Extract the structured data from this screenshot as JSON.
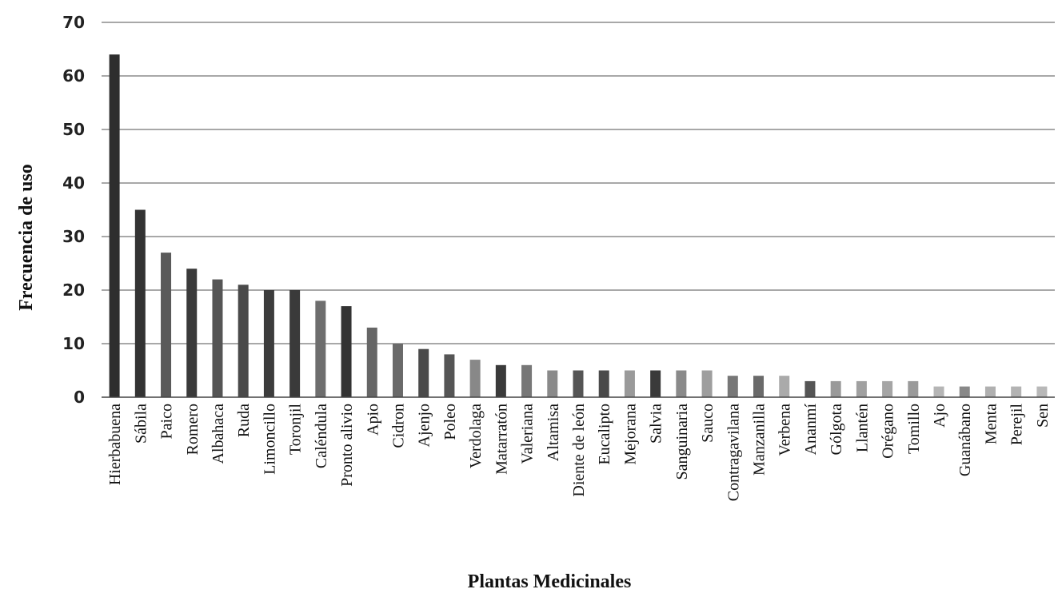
{
  "chart_data": {
    "type": "bar",
    "title": "",
    "xlabel": "Plantas Medicinales",
    "ylabel": "Frecuencia de uso",
    "ylim": [
      0,
      70
    ],
    "yticks": [
      "0",
      "10",
      "20",
      "30",
      "40",
      "50",
      "60",
      "70"
    ],
    "grid": true,
    "legend": "none",
    "categories": [
      "Hierbabuena",
      "Sábila",
      "Paico",
      "Romero",
      "Albahaca",
      "Ruda",
      "Limoncillo",
      "Toronjil",
      "Caléndula",
      "Pronto alivio",
      "Apio",
      "Cidron",
      "Ajenjo",
      "Poleo",
      "Verdolaga",
      "Matarratón",
      "Valeriana",
      "Altamisa",
      "Diente de león",
      "Eucalipto",
      "Mejorana",
      "Salvia",
      "Sanguinaria",
      "Sauco",
      "Contragavilana",
      "Manzanilla",
      "Verbena",
      "Ananmí",
      "Gólgota",
      "Llantén",
      "Orégano",
      "Tomillo",
      "Ajo",
      "Guanábano",
      "Menta",
      "Perejil",
      "Sen"
    ],
    "values": [
      64,
      35,
      27,
      24,
      22,
      21,
      20,
      20,
      18,
      17,
      13,
      10,
      9,
      8,
      7,
      6,
      6,
      5,
      5,
      5,
      5,
      5,
      5,
      5,
      4,
      4,
      4,
      3,
      3,
      3,
      3,
      3,
      2,
      2,
      2,
      2,
      2
    ],
    "bar_colors": [
      "#2e2e2e",
      "#333333",
      "#5a5a5a",
      "#3a3a3a",
      "#555555",
      "#4a4a4a",
      "#3c3c3c",
      "#3a3a3a",
      "#6e6e6e",
      "#333333",
      "#666666",
      "#6a6a6a",
      "#4a4a4a",
      "#555555",
      "#888888",
      "#3a3a3a",
      "#777777",
      "#8a8a8a",
      "#555555",
      "#4a4a4a",
      "#9a9a9a",
      "#3a3a3a",
      "#8a8a8a",
      "#9e9e9e",
      "#777777",
      "#6a6a6a",
      "#aaaaaa",
      "#555555",
      "#999999",
      "#a0a0a0",
      "#a5a5a5",
      "#9a9a9a",
      "#b5b5b5",
      "#888888",
      "#b0b0b0",
      "#b3b3b3",
      "#b8b8b8"
    ]
  }
}
